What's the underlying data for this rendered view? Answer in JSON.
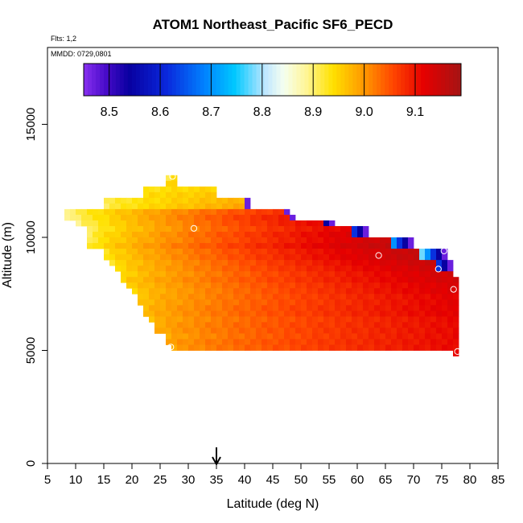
{
  "chart_data": {
    "type": "heatmap",
    "title": "ATOM1 Northeast_Pacific SF6_PECD",
    "flights_label": "Flts: 1,2",
    "dates_label": "MMDD: 0729,0801",
    "xlabel": "Latitude (deg N)",
    "ylabel": "Altitude (m)",
    "xlim": [
      5,
      85
    ],
    "ylim": [
      0,
      18400
    ],
    "x_ticks": [
      "5",
      "10",
      "15",
      "20",
      "25",
      "30",
      "35",
      "40",
      "45",
      "50",
      "55",
      "60",
      "65",
      "70",
      "75",
      "80",
      "85"
    ],
    "y_ticks": [
      "0",
      "5000",
      "10000",
      "15000"
    ],
    "colorbar": {
      "range": [
        8.45,
        9.19
      ],
      "ticks": [
        "8.5",
        "8.6",
        "8.7",
        "8.8",
        "8.9",
        "9.0",
        "9.1"
      ]
    },
    "arrow_latitude": 35,
    "grid_cell": {
      "dx_deg": 1,
      "dy_m": 250
    },
    "rows": [
      {
        "y0": 12500,
        "x0": 26,
        "x1": 28,
        "v0": 8.92,
        "v1": 8.94,
        "edge": 0
      },
      {
        "y0": 12250,
        "x0": 26,
        "x1": 28,
        "v0": 8.95,
        "v1": 8.96,
        "edge": 0
      },
      {
        "y0": 12000,
        "x0": 22,
        "x1": 35,
        "v0": 8.93,
        "v1": 8.95,
        "edge": 0
      },
      {
        "y0": 11750,
        "x0": 22,
        "x1": 35,
        "v0": 8.94,
        "v1": 8.96,
        "edge": 0
      },
      {
        "y0": 11500,
        "x0": 15,
        "x1": 41,
        "v0": 8.91,
        "v1": 8.98,
        "edge": 1
      },
      {
        "y0": 11250,
        "x0": 15,
        "x1": 41,
        "v0": 8.91,
        "v1": 8.99,
        "edge": 1
      },
      {
        "y0": 11000,
        "x0": 8,
        "x1": 48,
        "v0": 8.89,
        "v1": 9.08,
        "edge": 1
      },
      {
        "y0": 10750,
        "x0": 8,
        "x1": 49,
        "v0": 8.88,
        "v1": 9.1,
        "edge": 1
      },
      {
        "y0": 10500,
        "x0": 10,
        "x1": 56,
        "v0": 8.89,
        "v1": 9.12,
        "edge": 2
      },
      {
        "y0": 10250,
        "x0": 12,
        "x1": 62,
        "v0": 8.9,
        "v1": 9.13,
        "edge": 3
      },
      {
        "y0": 10000,
        "x0": 12,
        "x1": 62,
        "v0": 8.91,
        "v1": 9.14,
        "edge": 3
      },
      {
        "y0": 9750,
        "x0": 12,
        "x1": 70,
        "v0": 8.91,
        "v1": 9.16,
        "edge": 4
      },
      {
        "y0": 9500,
        "x0": 12,
        "x1": 70,
        "v0": 8.92,
        "v1": 9.17,
        "edge": 4
      },
      {
        "y0": 9250,
        "x0": 15,
        "x1": 76,
        "v0": 8.93,
        "v1": 9.17,
        "edge": 5
      },
      {
        "y0": 9000,
        "x0": 15,
        "x1": 76,
        "v0": 8.93,
        "v1": 9.17,
        "edge": 5
      },
      {
        "y0": 8750,
        "x0": 16,
        "x1": 77,
        "v0": 8.93,
        "v1": 9.16,
        "edge": 3
      },
      {
        "y0": 8500,
        "x0": 17,
        "x1": 77,
        "v0": 8.94,
        "v1": 9.15,
        "edge": 3
      },
      {
        "y0": 8250,
        "x0": 18,
        "x1": 77,
        "v0": 8.94,
        "v1": 9.14,
        "edge": 0
      },
      {
        "y0": 8000,
        "x0": 18,
        "x1": 78,
        "v0": 8.95,
        "v1": 9.14,
        "edge": 0
      },
      {
        "y0": 7750,
        "x0": 19,
        "x1": 78,
        "v0": 8.95,
        "v1": 9.13,
        "edge": 0
      },
      {
        "y0": 7500,
        "x0": 20,
        "x1": 78,
        "v0": 8.95,
        "v1": 9.13,
        "edge": 0
      },
      {
        "y0": 7250,
        "x0": 21,
        "x1": 78,
        "v0": 8.96,
        "v1": 9.12,
        "edge": 0
      },
      {
        "y0": 7000,
        "x0": 21,
        "x1": 78,
        "v0": 8.96,
        "v1": 9.12,
        "edge": 0
      },
      {
        "y0": 6750,
        "x0": 22,
        "x1": 78,
        "v0": 8.97,
        "v1": 9.12,
        "edge": 0
      },
      {
        "y0": 6500,
        "x0": 22,
        "x1": 78,
        "v0": 8.97,
        "v1": 9.12,
        "edge": 0
      },
      {
        "y0": 6250,
        "x0": 23,
        "x1": 78,
        "v0": 8.97,
        "v1": 9.11,
        "edge": 0
      },
      {
        "y0": 6000,
        "x0": 24,
        "x1": 78,
        "v0": 8.98,
        "v1": 9.11,
        "edge": 0
      },
      {
        "y0": 5750,
        "x0": 24,
        "x1": 78,
        "v0": 8.98,
        "v1": 9.11,
        "edge": 0
      },
      {
        "y0": 5500,
        "x0": 26,
        "x1": 78,
        "v0": 8.98,
        "v1": 9.11,
        "edge": 0
      },
      {
        "y0": 5250,
        "x0": 26,
        "x1": 78,
        "v0": 8.99,
        "v1": 9.11,
        "edge": 0
      },
      {
        "y0": 5000,
        "x0": 27,
        "x1": 78,
        "v0": 8.99,
        "v1": 9.11,
        "edge": 0
      },
      {
        "y0": 4750,
        "x0": 77,
        "x1": 78,
        "v0": 9.11,
        "v1": 9.11,
        "edge": 0
      }
    ],
    "sample_markers": [
      {
        "lat": 27.2,
        "alt": 12700
      },
      {
        "lat": 31.0,
        "alt": 10400
      },
      {
        "lat": 63.8,
        "alt": 9200
      },
      {
        "lat": 75.4,
        "alt": 9400
      },
      {
        "lat": 74.4,
        "alt": 8600
      },
      {
        "lat": 77.1,
        "alt": 7700
      },
      {
        "lat": 77.8,
        "alt": 4950
      },
      {
        "lat": 26.9,
        "alt": 5150
      }
    ]
  }
}
